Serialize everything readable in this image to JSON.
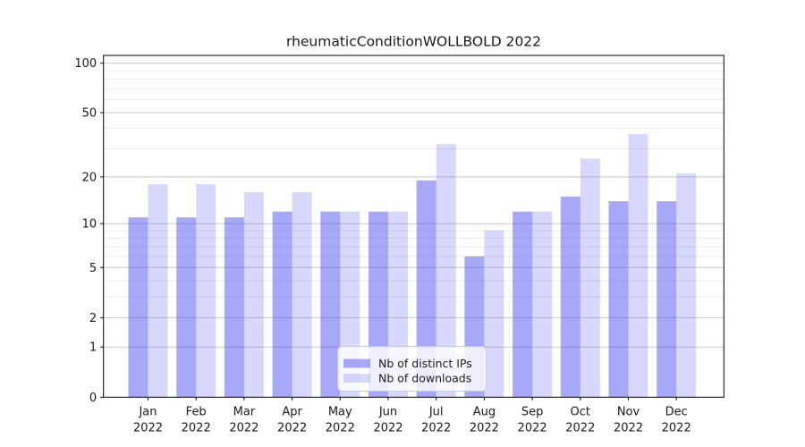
{
  "chart_data": {
    "type": "bar",
    "title": "rheumaticConditionWOLLBOLD 2022",
    "categories": [
      "Jan",
      "Feb",
      "Mar",
      "Apr",
      "May",
      "Jun",
      "Jul",
      "Aug",
      "Sep",
      "Oct",
      "Nov",
      "Dec"
    ],
    "year_label": "2022",
    "series": [
      {
        "name": "Nb of distinct IPs",
        "values": [
          11,
          11,
          11,
          12,
          12,
          12,
          19,
          6,
          12,
          15,
          14,
          14
        ],
        "color": "rgba(61,61,239,0.45)"
      },
      {
        "name": "Nb of downloads",
        "values": [
          18,
          18,
          16,
          16,
          12,
          12,
          32,
          9,
          12,
          26,
          37,
          21
        ],
        "color": "rgba(61,61,239,0.20)"
      }
    ],
    "y_axis": {
      "scale": "symlog",
      "ticks": [
        0,
        1,
        2,
        5,
        10,
        20,
        50,
        100
      ],
      "minor_gridlines": [
        3,
        4,
        6,
        7,
        8,
        9,
        30,
        40,
        60,
        70,
        80,
        90
      ],
      "ylim": [
        0,
        112
      ],
      "grid": "on"
    },
    "legend": {
      "position": "inside-bottom-center",
      "entries": [
        "Nb of distinct IPs",
        "Nb of downloads"
      ]
    },
    "colors": {
      "bar_base": "#3d3def",
      "grid_major": "#c9c9c9",
      "grid_minor": "#ececec",
      "axis": "#000000",
      "text": "#1a1a1a",
      "legend_border": "#cccccc",
      "legend_bg": "rgba(255,255,255,0.8)"
    }
  }
}
